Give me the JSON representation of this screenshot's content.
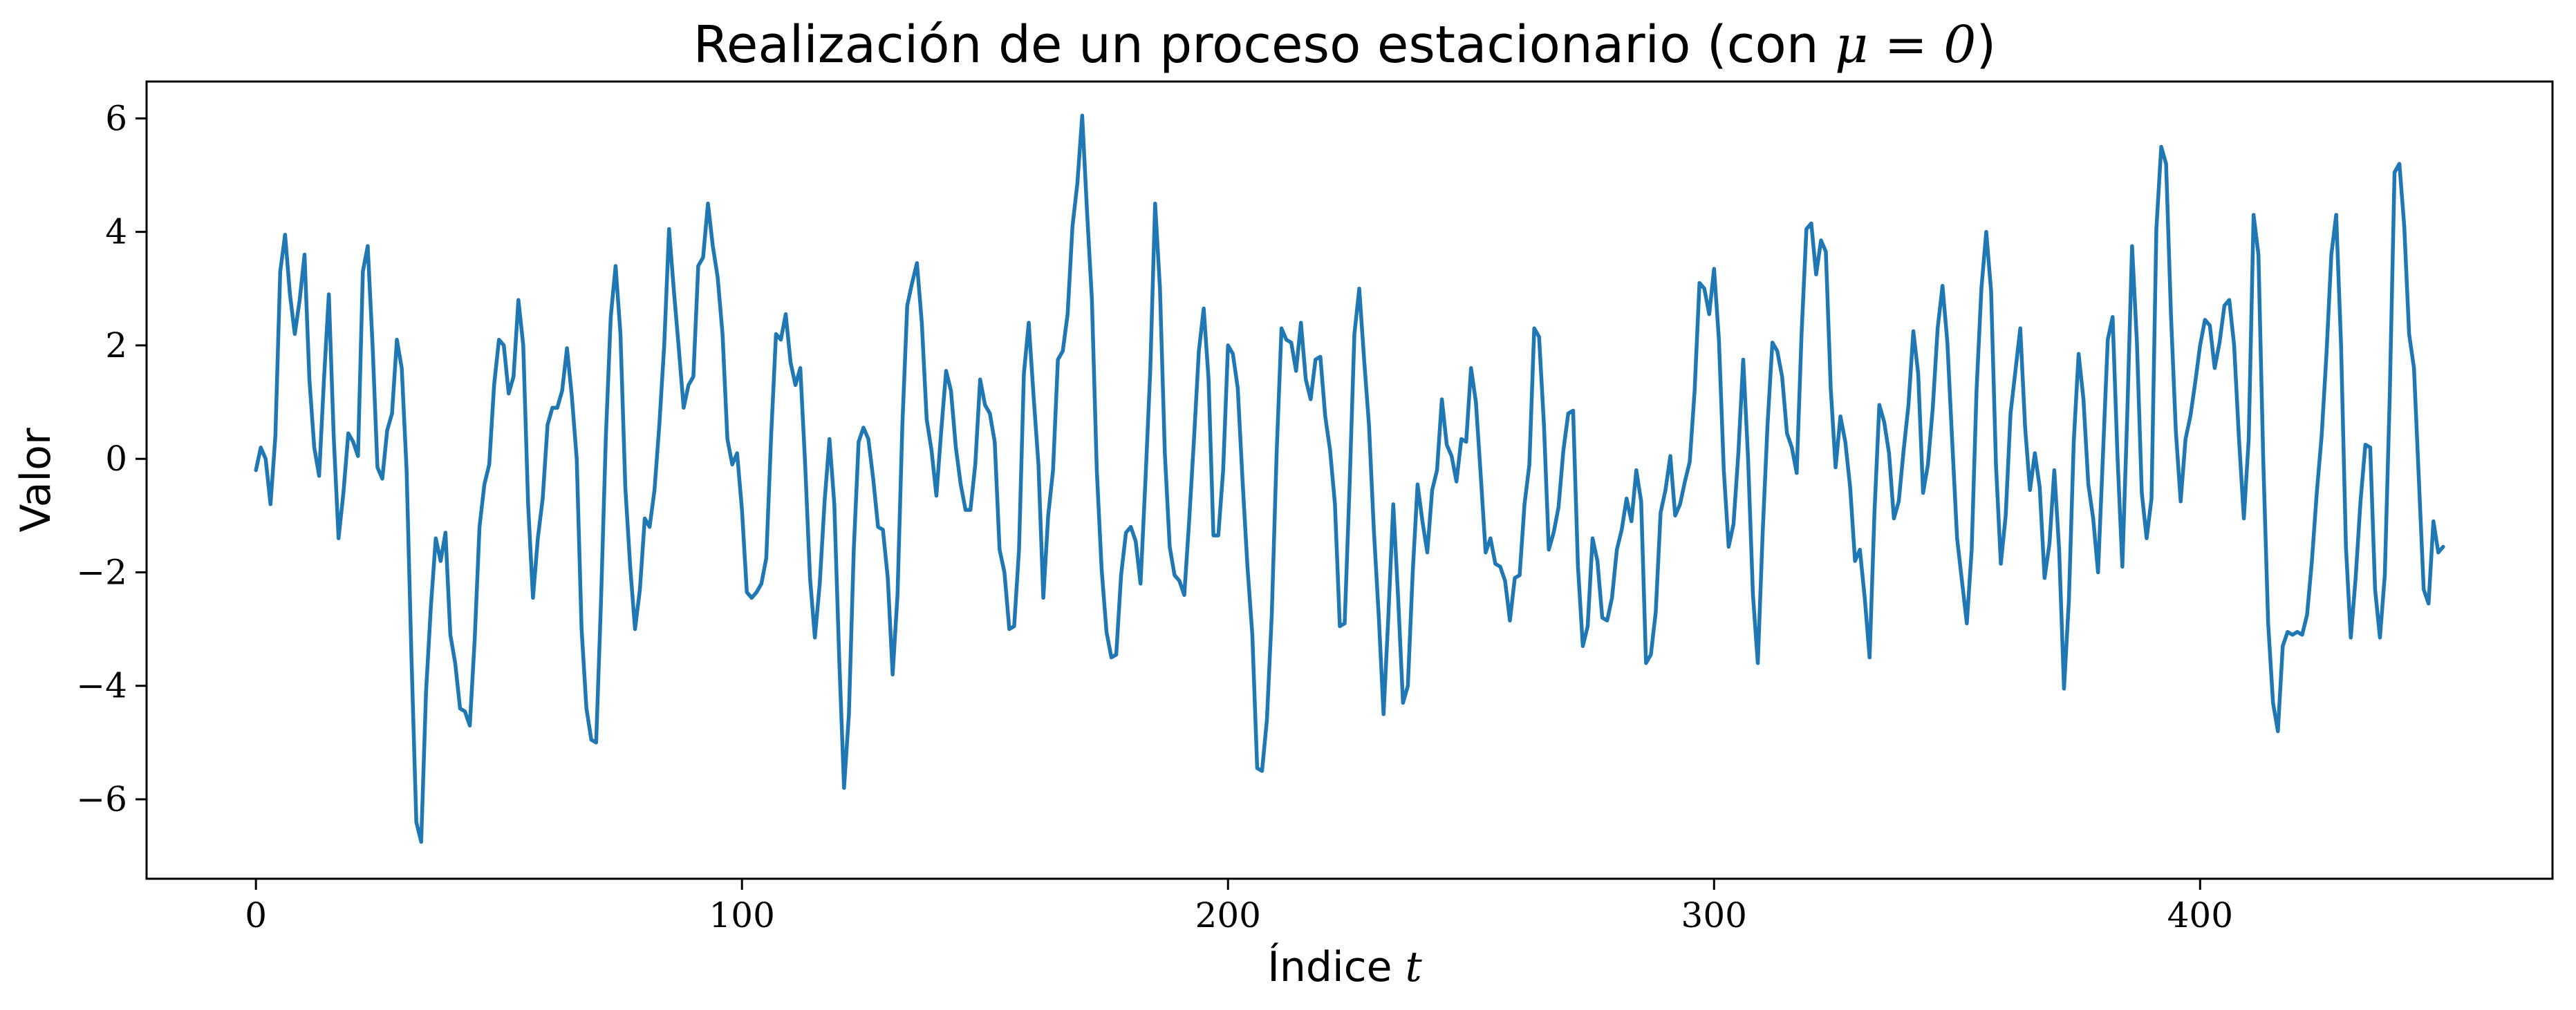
{
  "chart_data": {
    "type": "line",
    "title": "Realización de un proceso estacionario (con μ = 0)",
    "title_text": "Realización de un proceso estacionario (con ",
    "title_math": "μ = 0",
    "title_close": ")",
    "xlabel_text": "Índice",
    "xlabel_math": "t",
    "ylabel": "Valor",
    "xlim": [
      -22.5,
      472.5
    ],
    "ylim": [
      -7.4,
      6.65
    ],
    "xticks": [
      0,
      100,
      200,
      300,
      400
    ],
    "yticks": [
      -6,
      -4,
      -2,
      0,
      2,
      4,
      6
    ],
    "ytick_labels": [
      "−6",
      "−4",
      "−2",
      "0",
      "2",
      "4",
      "6"
    ],
    "grid": false,
    "series": [
      {
        "color": "#1f77b4",
        "x_start": 0,
        "x_step": 1,
        "y": [
          -0.2,
          0.2,
          0,
          -0.8,
          0.4,
          3.3,
          3.95,
          2.9,
          2.2,
          2.8,
          3.6,
          1.4,
          0.2,
          -0.3,
          1.4,
          2.9,
          0.4,
          -1.4,
          -0.6,
          0.45,
          0.3,
          0.05,
          3.3,
          3.75,
          2.0,
          -0.15,
          -0.35,
          0.5,
          0.8,
          2.1,
          1.6,
          -0.2,
          -3.5,
          -6.4,
          -6.75,
          -4.1,
          -2.6,
          -1.4,
          -1.8,
          -1.3,
          -3.1,
          -3.6,
          -4.4,
          -4.45,
          -4.7,
          -3.2,
          -1.2,
          -0.45,
          -0.1,
          1.3,
          2.1,
          2.0,
          1.15,
          1.45,
          2.8,
          2.0,
          -0.8,
          -2.45,
          -1.4,
          -0.7,
          0.6,
          0.9,
          0.9,
          1.2,
          1.95,
          1.1,
          0.0,
          -3.0,
          -4.4,
          -4.95,
          -5.0,
          -2.5,
          0.4,
          2.5,
          3.4,
          2.2,
          -0.5,
          -1.9,
          -3.0,
          -2.3,
          -1.05,
          -1.2,
          -0.55,
          0.6,
          2.0,
          4.05,
          2.95,
          1.95,
          0.9,
          1.3,
          1.45,
          3.4,
          3.55,
          4.5,
          3.75,
          3.2,
          2.2,
          0.35,
          -0.1,
          0.1,
          -0.9,
          -2.35,
          -2.45,
          -2.35,
          -2.2,
          -1.75,
          0.4,
          2.2,
          2.1,
          2.55,
          1.7,
          1.3,
          1.6,
          -0.1,
          -2.1,
          -3.15,
          -2.2,
          -0.75,
          0.35,
          -0.8,
          -3.5,
          -5.8,
          -4.5,
          -1.6,
          0.3,
          0.55,
          0.35,
          -0.35,
          -1.2,
          -1.25,
          -2.1,
          -3.8,
          -2.4,
          0.6,
          2.7,
          3.1,
          3.45,
          2.4,
          0.7,
          0.15,
          -0.65,
          0.5,
          1.55,
          1.2,
          0.2,
          -0.45,
          -0.9,
          -0.9,
          -0.1,
          1.4,
          0.95,
          0.8,
          0.3,
          -1.6,
          -2.0,
          -3.0,
          -2.95,
          -1.6,
          1.5,
          2.4,
          1.1,
          -0.1,
          -2.45,
          -1.0,
          -0.2,
          1.75,
          1.9,
          2.55,
          4.1,
          4.85,
          6.05,
          4.35,
          2.8,
          -0.2,
          -1.95,
          -3.05,
          -3.5,
          -3.45,
          -2.05,
          -1.3,
          -1.2,
          -1.45,
          -2.2,
          -0.4,
          1.55,
          4.5,
          3.0,
          0.1,
          -1.55,
          -2.05,
          -2.15,
          -2.4,
          -1.1,
          0.35,
          1.9,
          2.65,
          1.4,
          -1.35,
          -1.35,
          -0.2,
          2.0,
          1.85,
          1.25,
          -0.4,
          -1.9,
          -3.1,
          -5.45,
          -5.5,
          -4.6,
          -2.75,
          0.1,
          2.3,
          2.1,
          2.05,
          1.55,
          2.4,
          1.4,
          1.05,
          1.75,
          1.8,
          0.75,
          0.15,
          -0.8,
          -2.95,
          -2.9,
          -0.5,
          2.2,
          3.0,
          1.75,
          0.6,
          -1.25,
          -2.75,
          -4.5,
          -2.75,
          -0.8,
          -2.45,
          -4.3,
          -4.0,
          -2.0,
          -0.45,
          -1.1,
          -1.65,
          -0.55,
          -0.2,
          1.05,
          0.25,
          0.05,
          -0.4,
          0.35,
          0.3,
          1.6,
          1.0,
          -0.3,
          -1.65,
          -1.4,
          -1.85,
          -1.9,
          -2.15,
          -2.85,
          -2.1,
          -2.05,
          -0.8,
          -0.1,
          2.3,
          2.15,
          0.6,
          -1.6,
          -1.3,
          -0.85,
          0.15,
          0.8,
          0.85,
          -1.9,
          -3.3,
          -2.95,
          -1.4,
          -1.8,
          -2.8,
          -2.85,
          -2.45,
          -1.6,
          -1.25,
          -0.7,
          -1.1,
          -0.2,
          -0.75,
          -3.6,
          -3.45,
          -2.7,
          -0.95,
          -0.55,
          0.05,
          -1.0,
          -0.8,
          -0.4,
          -0.05,
          1.2,
          3.1,
          3.0,
          2.55,
          3.35,
          2.1,
          -0.2,
          -1.55,
          -1.15,
          0.1,
          1.75,
          0.0,
          -2.4,
          -3.6,
          -1.3,
          0.6,
          2.05,
          1.9,
          1.45,
          0.45,
          0.2,
          -0.25,
          2.2,
          4.05,
          4.15,
          3.25,
          3.85,
          3.65,
          1.25,
          -0.15,
          0.75,
          0.3,
          -0.5,
          -1.8,
          -1.6,
          -2.45,
          -3.5,
          -0.95,
          0.95,
          0.65,
          0.1,
          -1.05,
          -0.75,
          0.15,
          0.95,
          2.25,
          1.5,
          -0.6,
          -0.1,
          0.9,
          2.3,
          3.05,
          2.05,
          0.3,
          -1.4,
          -2.15,
          -2.9,
          -1.6,
          1.2,
          3.0,
          4.0,
          2.95,
          -0.1,
          -1.85,
          -1.0,
          0.8,
          1.55,
          2.3,
          0.55,
          -0.55,
          0.1,
          -0.5,
          -2.1,
          -1.5,
          -0.2,
          -1.6,
          -4.05,
          -2.5,
          0.3,
          1.85,
          1.05,
          -0.45,
          -1.05,
          -2.0,
          0.05,
          2.1,
          2.5,
          0.05,
          -1.9,
          0.75,
          3.75,
          2.05,
          -0.6,
          -1.4,
          -0.7,
          4.05,
          5.5,
          5.2,
          2.55,
          0.5,
          -0.75,
          0.35,
          0.75,
          1.35,
          2.0,
          2.45,
          2.35,
          1.6,
          2.05,
          2.7,
          2.8,
          2.0,
          0.35,
          -1.05,
          0.35,
          4.3,
          3.6,
          -0.05,
          -2.9,
          -4.3,
          -4.8,
          -3.3,
          -3.05,
          -3.1,
          -3.05,
          -3.1,
          -2.75,
          -1.8,
          -0.6,
          0.4,
          1.85,
          3.6,
          4.3,
          2.0,
          -1.55,
          -3.15,
          -2.1,
          -0.75,
          0.25,
          0.2,
          -2.3,
          -3.15,
          -2.05,
          1.05,
          5.05,
          5.2,
          4.1,
          2.2,
          1.6,
          -0.35,
          -2.3,
          -2.55,
          -1.1,
          -1.65,
          -1.55
        ]
      }
    ]
  }
}
